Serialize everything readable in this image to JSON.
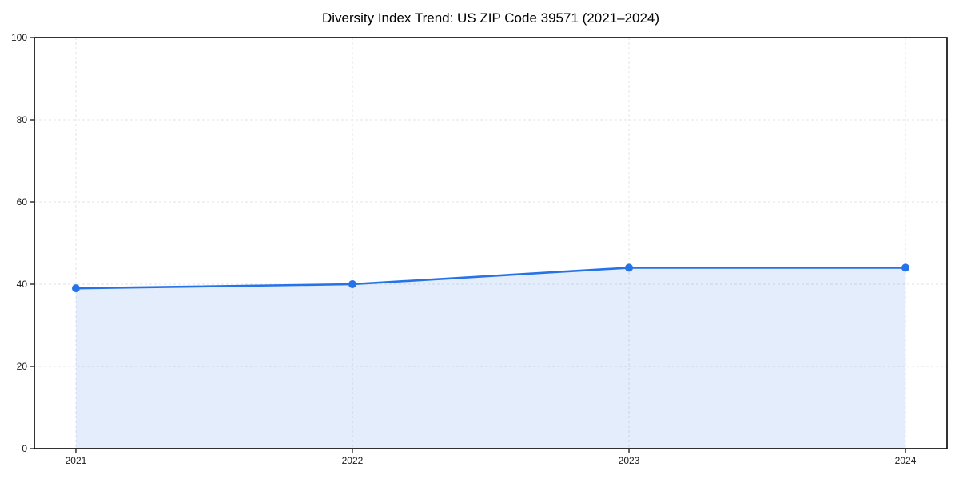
{
  "chart_data": {
    "type": "area",
    "title": "Diversity Index Trend: US ZIP Code 39571 (2021–2024)",
    "categories": [
      "2021",
      "2022",
      "2023",
      "2024"
    ],
    "values": [
      39,
      40,
      44,
      44
    ],
    "xlabel": "",
    "ylabel": "",
    "ylim": [
      0,
      100
    ],
    "yticks": [
      0,
      20,
      40,
      60,
      80,
      100
    ],
    "grid": {
      "style": "dashed",
      "axes": "both",
      "color": "#e3e3e3"
    },
    "legend_position": "none",
    "fill_opacity": 0.13,
    "colors": {
      "line": "#2673e8",
      "marker": "#2673e8",
      "fill_base": "#2673e8",
      "axis": "#000000",
      "tick_label": "#1a1a1a",
      "title": "#000000",
      "background": "#ffffff"
    }
  }
}
